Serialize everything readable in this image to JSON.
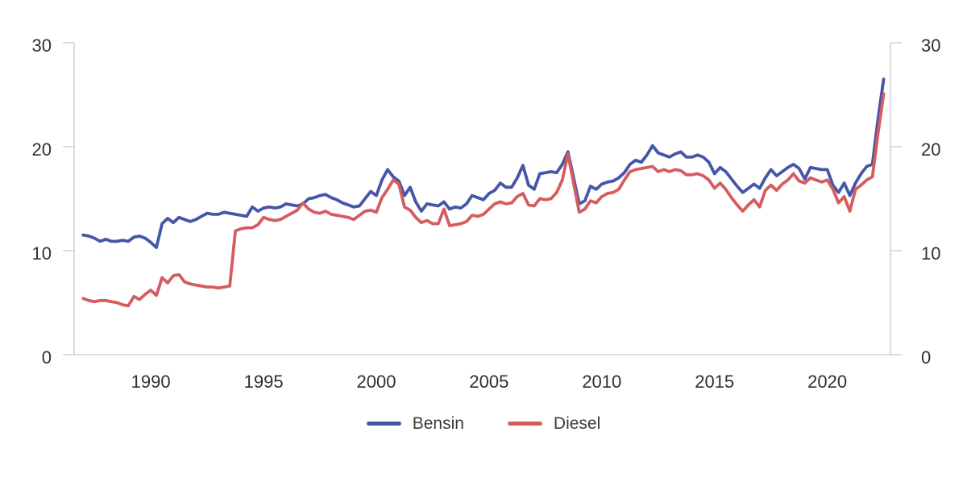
{
  "chart_data": {
    "type": "line",
    "title": "",
    "xlabel": "",
    "ylabel": "",
    "x_start": 1987.0,
    "x_step": 0.25,
    "xlim": [
      1986.6,
      2022.8
    ],
    "ylim": [
      0,
      30
    ],
    "x_ticks": [
      1990,
      1995,
      2000,
      2005,
      2010,
      2015,
      2020
    ],
    "y_ticks": [
      0,
      10,
      20,
      30
    ],
    "y_axis_sides": "left-and-right",
    "grid": false,
    "legend_position": "bottom-center",
    "axis_color": "#c9c9c9",
    "series": [
      {
        "name": "Bensin",
        "color": "#4456a8",
        "values": [
          11.5,
          11.4,
          11.2,
          10.9,
          11.1,
          10.9,
          10.9,
          11.0,
          10.9,
          11.3,
          11.4,
          11.2,
          10.8,
          10.3,
          12.6,
          13.1,
          12.7,
          13.2,
          13.0,
          12.8,
          13.0,
          13.3,
          13.6,
          13.5,
          13.5,
          13.7,
          13.6,
          13.5,
          13.4,
          13.3,
          14.2,
          13.8,
          14.1,
          14.2,
          14.1,
          14.2,
          14.5,
          14.4,
          14.3,
          14.5,
          15.0,
          15.1,
          15.3,
          15.4,
          15.1,
          14.9,
          14.6,
          14.4,
          14.2,
          14.3,
          15.0,
          15.7,
          15.3,
          16.8,
          17.8,
          17.1,
          16.7,
          15.3,
          16.1,
          14.7,
          13.8,
          14.5,
          14.4,
          14.3,
          14.7,
          14.0,
          14.2,
          14.1,
          14.5,
          15.3,
          15.1,
          14.9,
          15.5,
          15.8,
          16.5,
          16.1,
          16.1,
          17.0,
          18.2,
          16.3,
          15.9,
          17.4,
          17.5,
          17.6,
          17.5,
          18.3,
          19.5,
          17.0,
          14.5,
          14.8,
          16.2,
          15.9,
          16.4,
          16.6,
          16.7,
          17.0,
          17.5,
          18.3,
          18.7,
          18.5,
          19.2,
          20.1,
          19.4,
          19.2,
          19.0,
          19.3,
          19.5,
          19.0,
          19.0,
          19.2,
          19.0,
          18.5,
          17.4,
          18.0,
          17.6,
          16.9,
          16.2,
          15.6,
          16.0,
          16.4,
          16.0,
          17.0,
          17.8,
          17.2,
          17.6,
          18.0,
          18.3,
          17.9,
          16.9,
          18.0,
          17.9,
          17.8,
          17.8,
          16.3,
          15.6,
          16.5,
          15.3,
          16.5,
          17.4,
          18.1,
          18.3,
          22.7,
          26.5
        ]
      },
      {
        "name": "Diesel",
        "color": "#d55c5e",
        "values": [
          5.4,
          5.2,
          5.1,
          5.2,
          5.2,
          5.1,
          5.0,
          4.8,
          4.7,
          5.6,
          5.3,
          5.8,
          6.2,
          5.7,
          7.4,
          6.9,
          7.6,
          7.7,
          7.0,
          6.8,
          6.7,
          6.6,
          6.5,
          6.5,
          6.4,
          6.5,
          6.6,
          11.9,
          12.1,
          12.2,
          12.2,
          12.5,
          13.2,
          13.0,
          12.9,
          13.0,
          13.3,
          13.6,
          13.9,
          14.6,
          14.0,
          13.7,
          13.6,
          13.8,
          13.5,
          13.4,
          13.3,
          13.2,
          13.0,
          13.4,
          13.8,
          13.9,
          13.7,
          15.1,
          15.9,
          16.8,
          16.4,
          14.2,
          13.9,
          13.2,
          12.7,
          12.9,
          12.6,
          12.6,
          14.0,
          12.4,
          12.5,
          12.6,
          12.8,
          13.4,
          13.3,
          13.5,
          14.0,
          14.5,
          14.7,
          14.5,
          14.6,
          15.2,
          15.5,
          14.4,
          14.3,
          15.0,
          14.9,
          15.0,
          15.6,
          16.8,
          19.3,
          16.5,
          13.7,
          14.0,
          14.8,
          14.6,
          15.2,
          15.5,
          15.6,
          15.9,
          16.8,
          17.6,
          17.8,
          17.9,
          18.0,
          18.1,
          17.6,
          17.8,
          17.6,
          17.8,
          17.7,
          17.3,
          17.3,
          17.4,
          17.2,
          16.8,
          16.0,
          16.5,
          15.9,
          15.1,
          14.4,
          13.8,
          14.4,
          14.9,
          14.2,
          15.8,
          16.3,
          15.8,
          16.4,
          16.8,
          17.4,
          16.7,
          16.5,
          17.0,
          16.8,
          16.6,
          16.8,
          15.9,
          14.6,
          15.2,
          13.8,
          15.9,
          16.3,
          16.8,
          17.1,
          21.3,
          25.1
        ]
      }
    ]
  }
}
